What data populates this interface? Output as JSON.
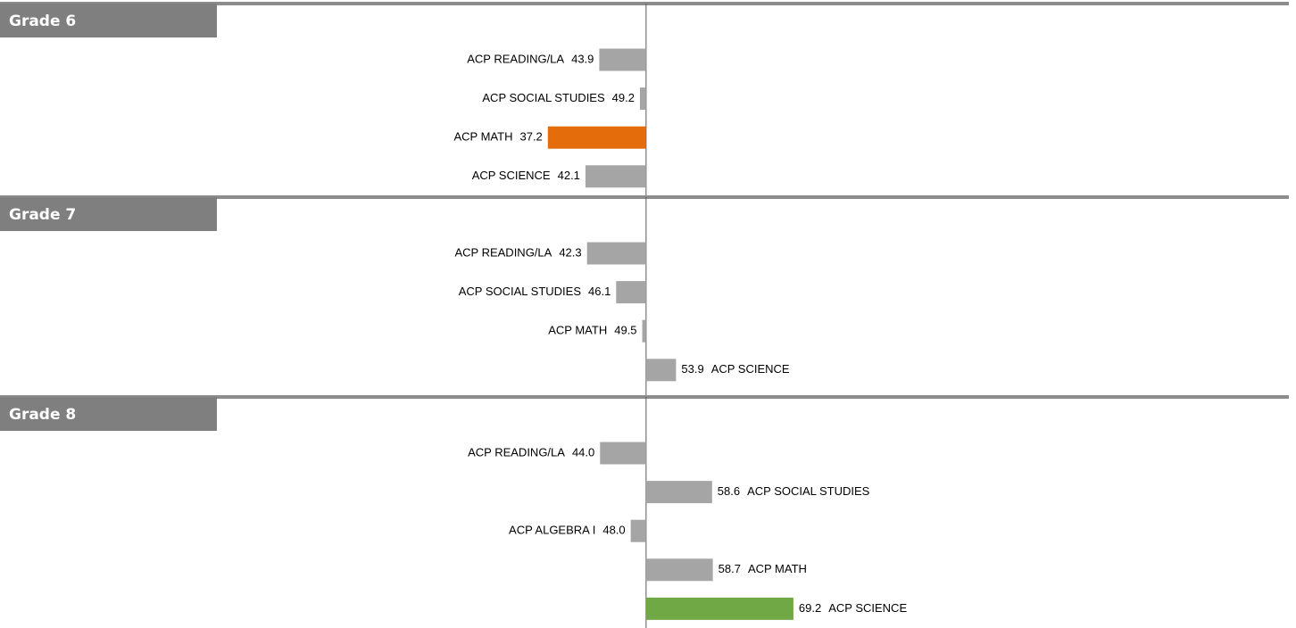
{
  "chart_data": [
    {
      "type": "bar",
      "title": "Grade 6",
      "categories": [
        "ACP READING/LA",
        "ACP SOCIAL STUDIES",
        "ACP MATH",
        "ACP SCIENCE"
      ],
      "values": [
        43.9,
        49.2,
        37.2,
        42.1
      ],
      "value_labels": [
        "43.9",
        "49.2",
        "37.2",
        "42.1"
      ],
      "colors": [
        "#a5a5a5",
        "#a5a5a5",
        "#e46c0a",
        "#a5a5a5"
      ],
      "xlim": [
        0,
        134
      ],
      "baseline": 50
    },
    {
      "type": "bar",
      "title": "Grade 7",
      "categories": [
        "ACP READING/LA",
        "ACP SOCIAL STUDIES",
        "ACP MATH",
        "ACP SCIENCE"
      ],
      "values": [
        42.3,
        46.1,
        49.5,
        53.9
      ],
      "value_labels": [
        "42.3",
        "46.1",
        "49.5",
        "53.9"
      ],
      "colors": [
        "#a5a5a5",
        "#a5a5a5",
        "#a5a5a5",
        "#a5a5a5"
      ],
      "xlim": [
        0,
        134
      ],
      "baseline": 50
    },
    {
      "type": "bar",
      "title": "Grade 8",
      "categories": [
        "ACP READING/LA",
        "ACP SOCIAL STUDIES",
        "ACP ALGEBRA I",
        "ACP MATH",
        "ACP SCIENCE"
      ],
      "values": [
        44.0,
        58.6,
        48.0,
        58.7,
        69.2
      ],
      "value_labels": [
        "44.0",
        "58.6",
        "48.0",
        "58.7",
        "69.2"
      ],
      "colors": [
        "#a5a5a5",
        "#a5a5a5",
        "#a5a5a5",
        "#a5a5a5",
        "#70a845"
      ],
      "xlim": [
        0,
        134
      ],
      "baseline": 50
    }
  ]
}
